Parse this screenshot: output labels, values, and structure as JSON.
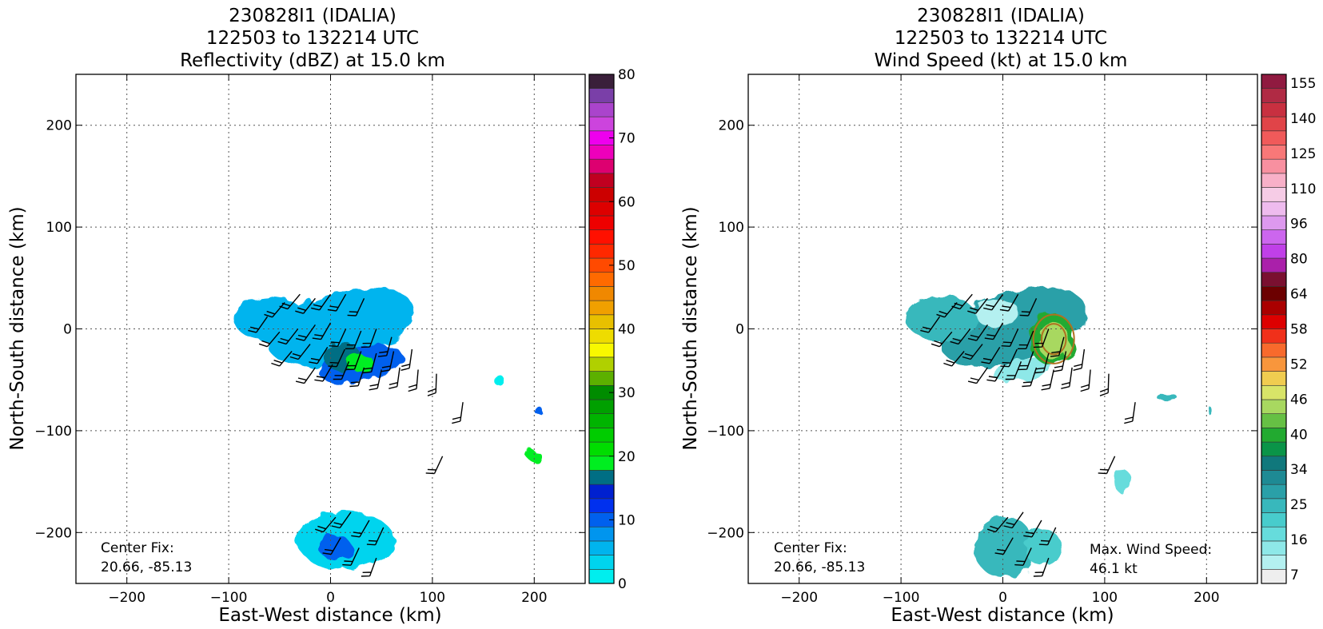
{
  "chart_data": [
    {
      "type": "heatmap",
      "title_lines": [
        "230828I1 (IDALIA)",
        "122503 to 132214 UTC",
        "Reflectivity (dBZ) at 15.0 km"
      ],
      "xlabel": "East-West distance (km)",
      "ylabel": "North-South distance (km)",
      "xlim": [
        -250,
        250
      ],
      "ylim": [
        -250,
        250
      ],
      "xticks": [
        -200,
        -100,
        0,
        100,
        200
      ],
      "yticks": [
        -200,
        -100,
        0,
        100,
        200
      ],
      "xtick_labels": [
        "−200",
        "−100",
        "0",
        "100",
        "200"
      ],
      "ytick_labels": [
        "−200",
        "−100",
        "0",
        "100",
        "200"
      ],
      "grid": true,
      "colorbar": {
        "min": 0,
        "max": 80,
        "step": 2.5,
        "ticks": [
          0,
          10,
          20,
          30,
          40,
          50,
          60,
          70,
          80
        ],
        "tick_labels": [
          "0",
          "10",
          "20",
          "30",
          "40",
          "50",
          "60",
          "70",
          "80"
        ],
        "colors": [
          "#00eeee",
          "#00d4ee",
          "#00b4ee",
          "#0095ee",
          "#0060ee",
          "#0030ee",
          "#0020d0",
          "#006e84",
          "#00ee20",
          "#00dd00",
          "#00cc00",
          "#00b400",
          "#00a000",
          "#008c00",
          "#5cb000",
          "#b0d000",
          "#f8f800",
          "#eedc00",
          "#e8c000",
          "#f0a000",
          "#f08800",
          "#ff6a00",
          "#ff4a00",
          "#ff2800",
          "#ff1000",
          "#ee0000",
          "#dd0000",
          "#cc0000",
          "#c00020",
          "#dd0070",
          "#ee00bb",
          "#ee00ee",
          "#cc44dd",
          "#aa44cc",
          "#7a3fa8",
          "#3a1f3a"
        ]
      },
      "blobs": [
        {
          "cx": 10,
          "cy": 2,
          "rx": 74,
          "ry": 34,
          "rot": -16,
          "value": 7
        },
        {
          "cx": -60,
          "cy": 10,
          "rx": 35,
          "ry": 22,
          "rot": 0,
          "value": 5
        },
        {
          "cx": 30,
          "cy": -35,
          "rx": 42,
          "ry": 17,
          "rot": -12,
          "value": 10
        },
        {
          "cx": 12,
          "cy": -28,
          "rx": 18,
          "ry": 14,
          "rot": 0,
          "value": 19
        },
        {
          "cx": 28,
          "cy": -33,
          "rx": 14,
          "ry": 9,
          "rot": 0,
          "value": 21
        },
        {
          "cx": 15,
          "cy": -208,
          "rx": 48,
          "ry": 28,
          "rot": 0,
          "value": 4
        },
        {
          "cx": 5,
          "cy": -215,
          "rx": 16,
          "ry": 12,
          "rot": 0,
          "value": 11
        },
        {
          "cx": 200,
          "cy": -125,
          "rx": 7,
          "ry": 5,
          "rot": 0,
          "value": 20
        },
        {
          "cx": 204,
          "cy": -80,
          "rx": 4,
          "ry": 4,
          "rot": 0,
          "value": 12
        },
        {
          "cx": 165,
          "cy": -50,
          "rx": 4,
          "ry": 6,
          "rot": 0,
          "value": 2
        }
      ],
      "barbs": [
        [
          -62,
          12,
          235
        ],
        [
          -45,
          26,
          230
        ],
        [
          -30,
          34,
          230
        ],
        [
          -15,
          30,
          232
        ],
        [
          0,
          34,
          235
        ],
        [
          15,
          34,
          240
        ],
        [
          33,
          30,
          245
        ],
        [
          -50,
          -3,
          230
        ],
        [
          -32,
          0,
          232
        ],
        [
          -15,
          4,
          235
        ],
        [
          0,
          6,
          240
        ],
        [
          15,
          0,
          245
        ],
        [
          30,
          -2,
          248
        ],
        [
          45,
          0,
          250
        ],
        [
          60,
          -8,
          255
        ],
        [
          -38,
          -22,
          230
        ],
        [
          -20,
          -15,
          232
        ],
        [
          -3,
          -18,
          238
        ],
        [
          14,
          -20,
          245
        ],
        [
          30,
          -22,
          250
        ],
        [
          45,
          -24,
          255
        ],
        [
          62,
          -22,
          258
        ],
        [
          80,
          -20,
          262
        ],
        [
          -15,
          -38,
          235
        ],
        [
          2,
          -35,
          240
        ],
        [
          18,
          -32,
          248
        ],
        [
          33,
          -38,
          252
        ],
        [
          50,
          -40,
          258
        ],
        [
          68,
          -38,
          262
        ],
        [
          86,
          -40,
          265
        ],
        [
          104,
          -44,
          268
        ],
        [
          130,
          -72,
          262
        ],
        [
          110,
          -125,
          245
        ],
        [
          5,
          -185,
          230
        ],
        [
          20,
          -180,
          235
        ],
        [
          38,
          -188,
          240
        ],
        [
          52,
          -195,
          245
        ],
        [
          10,
          -205,
          240
        ],
        [
          28,
          -215,
          245
        ],
        [
          45,
          -225,
          250
        ]
      ],
      "center_fix_label": "Center Fix:",
      "center_fix_value": "20.66, -85.13"
    },
    {
      "type": "heatmap",
      "title_lines": [
        "230828I1 (IDALIA)",
        "122503 to 132214 UTC",
        "Wind Speed (kt) at 15.0 km"
      ],
      "xlabel": "East-West distance (km)",
      "ylabel": "North-South distance (km)",
      "xlim": [
        -250,
        250
      ],
      "ylim": [
        -250,
        250
      ],
      "xticks": [
        -200,
        -100,
        0,
        100,
        200
      ],
      "yticks": [
        -200,
        -100,
        0,
        100,
        200
      ],
      "xtick_labels": [
        "−200",
        "−100",
        "0",
        "100",
        "200"
      ],
      "ytick_labels": [
        "−200",
        "−100",
        "0",
        "100",
        "200"
      ],
      "grid": true,
      "colorbar": {
        "bins": 29,
        "tick_labels": [
          "7",
          "16",
          "25",
          "34",
          "40",
          "46",
          "52",
          "58",
          "64",
          "80",
          "96",
          "110",
          "125",
          "140",
          "155"
        ],
        "tick_bin_positions": [
          1,
          3,
          5,
          7,
          9,
          11,
          13,
          15,
          17,
          19,
          21,
          23,
          25,
          27,
          29
        ],
        "colors": [
          "#eeeeee",
          "#b4f0f0",
          "#8ee8e8",
          "#66dcdc",
          "#48cccc",
          "#38b8bc",
          "#2aa0a8",
          "#1e8a94",
          "#10787c",
          "#0a9448",
          "#22aa30",
          "#66c044",
          "#a8d860",
          "#d8e468",
          "#f0cc50",
          "#f8963c",
          "#f86a2c",
          "#f0301a",
          "#dd0000",
          "#aa0000",
          "#6c0000",
          "#7a1030",
          "#aa20aa",
          "#c040e8",
          "#cc66ee",
          "#dd99ee",
          "#eebbee",
          "#f6cce6",
          "#f8b0c8",
          "#f890a0",
          "#f87878",
          "#f05a5a",
          "#e04448",
          "#c83040",
          "#b02a44",
          "#901a40"
        ]
      },
      "blobs": [
        {
          "cx": 10,
          "cy": 2,
          "rx": 74,
          "ry": 34,
          "rot": -16,
          "bin": 6
        },
        {
          "cx": -60,
          "cy": 10,
          "rx": 35,
          "ry": 22,
          "rot": 0,
          "bin": 5
        },
        {
          "cx": -5,
          "cy": 15,
          "rx": 22,
          "ry": 14,
          "rot": 0,
          "bin": 1
        },
        {
          "cx": 20,
          "cy": -40,
          "rx": 30,
          "ry": 10,
          "rot": -10,
          "bin": 2
        },
        {
          "cx": 48,
          "cy": -10,
          "rx": 22,
          "ry": 26,
          "rot": 0,
          "bin": 10
        },
        {
          "cx": 50,
          "cy": -12,
          "rx": 15,
          "ry": 18,
          "rot": 0,
          "bin": 12
        },
        {
          "cx": 2,
          "cy": -215,
          "rx": 30,
          "ry": 30,
          "rot": 0,
          "bin": 5
        },
        {
          "cx": 40,
          "cy": -215,
          "rx": 18,
          "ry": 18,
          "rot": 0,
          "bin": 4
        },
        {
          "cx": 160,
          "cy": -66,
          "rx": 10,
          "ry": 4,
          "rot": 0,
          "bin": 5
        },
        {
          "cx": 118,
          "cy": -150,
          "rx": 8,
          "ry": 12,
          "rot": 0,
          "bin": 3
        },
        {
          "cx": 203,
          "cy": -80,
          "rx": 2,
          "ry": 4,
          "rot": 0,
          "bin": 5
        }
      ],
      "barbs": [
        [
          -62,
          12,
          235
        ],
        [
          -45,
          26,
          230
        ],
        [
          -30,
          34,
          230
        ],
        [
          -15,
          30,
          232
        ],
        [
          0,
          34,
          235
        ],
        [
          15,
          34,
          240
        ],
        [
          33,
          30,
          245
        ],
        [
          -50,
          -3,
          230
        ],
        [
          -32,
          0,
          232
        ],
        [
          -15,
          4,
          235
        ],
        [
          0,
          6,
          240
        ],
        [
          15,
          0,
          245
        ],
        [
          30,
          -2,
          248
        ],
        [
          45,
          0,
          250
        ],
        [
          60,
          -8,
          255
        ],
        [
          -38,
          -22,
          230
        ],
        [
          -20,
          -15,
          232
        ],
        [
          -3,
          -18,
          238
        ],
        [
          14,
          -20,
          245
        ],
        [
          30,
          -22,
          250
        ],
        [
          45,
          -24,
          255
        ],
        [
          62,
          -22,
          258
        ],
        [
          80,
          -20,
          262
        ],
        [
          -15,
          -38,
          235
        ],
        [
          2,
          -35,
          240
        ],
        [
          18,
          -32,
          248
        ],
        [
          33,
          -38,
          252
        ],
        [
          50,
          -40,
          258
        ],
        [
          68,
          -38,
          262
        ],
        [
          86,
          -40,
          265
        ],
        [
          104,
          -44,
          268
        ],
        [
          130,
          -72,
          262
        ],
        [
          110,
          -125,
          245
        ],
        [
          5,
          -185,
          230
        ],
        [
          20,
          -180,
          235
        ],
        [
          38,
          -188,
          240
        ],
        [
          52,
          -195,
          245
        ],
        [
          10,
          -205,
          240
        ],
        [
          28,
          -215,
          245
        ],
        [
          45,
          -225,
          250
        ]
      ],
      "contour_center": [
        50,
        -10
      ],
      "contour_radii": [
        [
          20,
          24
        ],
        [
          12,
          15
        ]
      ],
      "center_fix_label": "Center Fix:",
      "center_fix_value": "20.66, -85.13",
      "max_wind_label": "Max. Wind Speed:",
      "max_wind_value": "46.1 kt"
    }
  ]
}
